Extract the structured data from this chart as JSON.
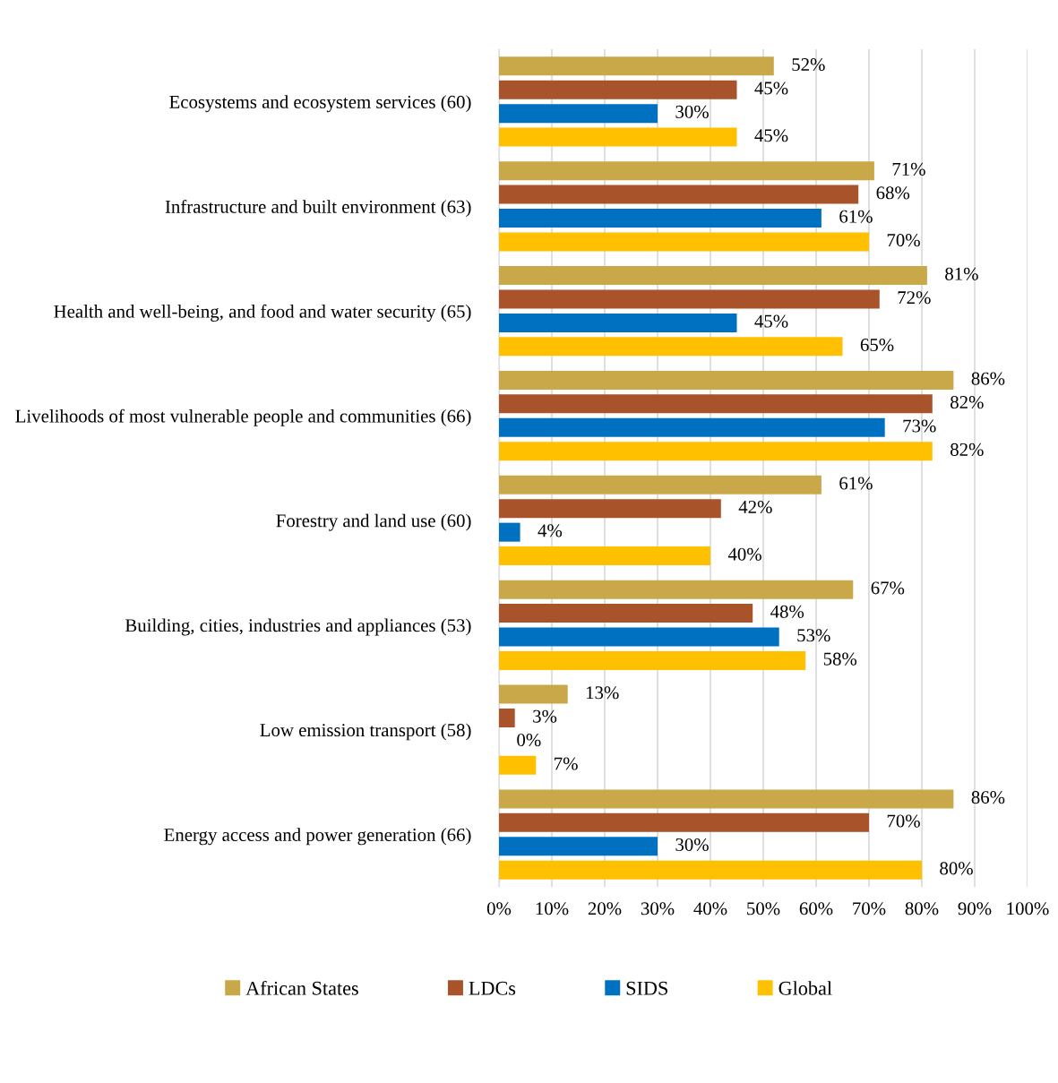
{
  "chart_data": {
    "type": "bar",
    "orientation": "horizontal",
    "categories": [
      "Ecosystems and ecosystem services (60)",
      "Infrastructure and built environment (63)",
      "Health and well-being, and food and water security (65)",
      "Livelihoods of most vulnerable people and communities (66)",
      "Forestry and land use (60)",
      "Building, cities, industries and appliances (53)",
      "Low emission transport (58)",
      "Energy access and power generation (66)"
    ],
    "series": [
      {
        "name": "African States",
        "color": "#c9a84a",
        "values": [
          52,
          71,
          81,
          86,
          61,
          67,
          13,
          86
        ],
        "value_labels": [
          "52%",
          "71%",
          "81%",
          "86%",
          "61%",
          "67%",
          "13%",
          "86%"
        ]
      },
      {
        "name": "LDCs",
        "color": "#a9532b",
        "values": [
          45,
          68,
          72,
          82,
          42,
          48,
          3,
          70
        ],
        "value_labels": [
          "45%",
          "68%",
          "72%",
          "82%",
          "42%",
          "48%",
          "3%",
          "70%"
        ]
      },
      {
        "name": "SIDS",
        "color": "#0070c0",
        "values": [
          30,
          61,
          45,
          73,
          4,
          53,
          0,
          30
        ],
        "value_labels": [
          "30%",
          "61%",
          "45%",
          "73%",
          "4%",
          "53%",
          "0%",
          "30%"
        ]
      },
      {
        "name": "Global",
        "color": "#ffc000",
        "values": [
          45,
          70,
          65,
          82,
          40,
          58,
          7,
          80
        ],
        "value_labels": [
          "45%",
          "70%",
          "65%",
          "82%",
          "40%",
          "58%",
          "7%",
          "80%"
        ]
      }
    ],
    "xlim": [
      0,
      100
    ],
    "xticks": [
      {
        "value": 0,
        "label": "0%"
      },
      {
        "value": 10,
        "label": "10%"
      },
      {
        "value": 20,
        "label": "20%"
      },
      {
        "value": 30,
        "label": "30%"
      },
      {
        "value": 40,
        "label": "40%"
      },
      {
        "value": 50,
        "label": "50%"
      },
      {
        "value": 60,
        "label": "60%"
      },
      {
        "value": 70,
        "label": "70%"
      },
      {
        "value": 80,
        "label": "80%"
      },
      {
        "value": 90,
        "label": "90%"
      },
      {
        "value": 100,
        "label": "100%"
      }
    ],
    "grid": "x",
    "legend": "bottom"
  }
}
